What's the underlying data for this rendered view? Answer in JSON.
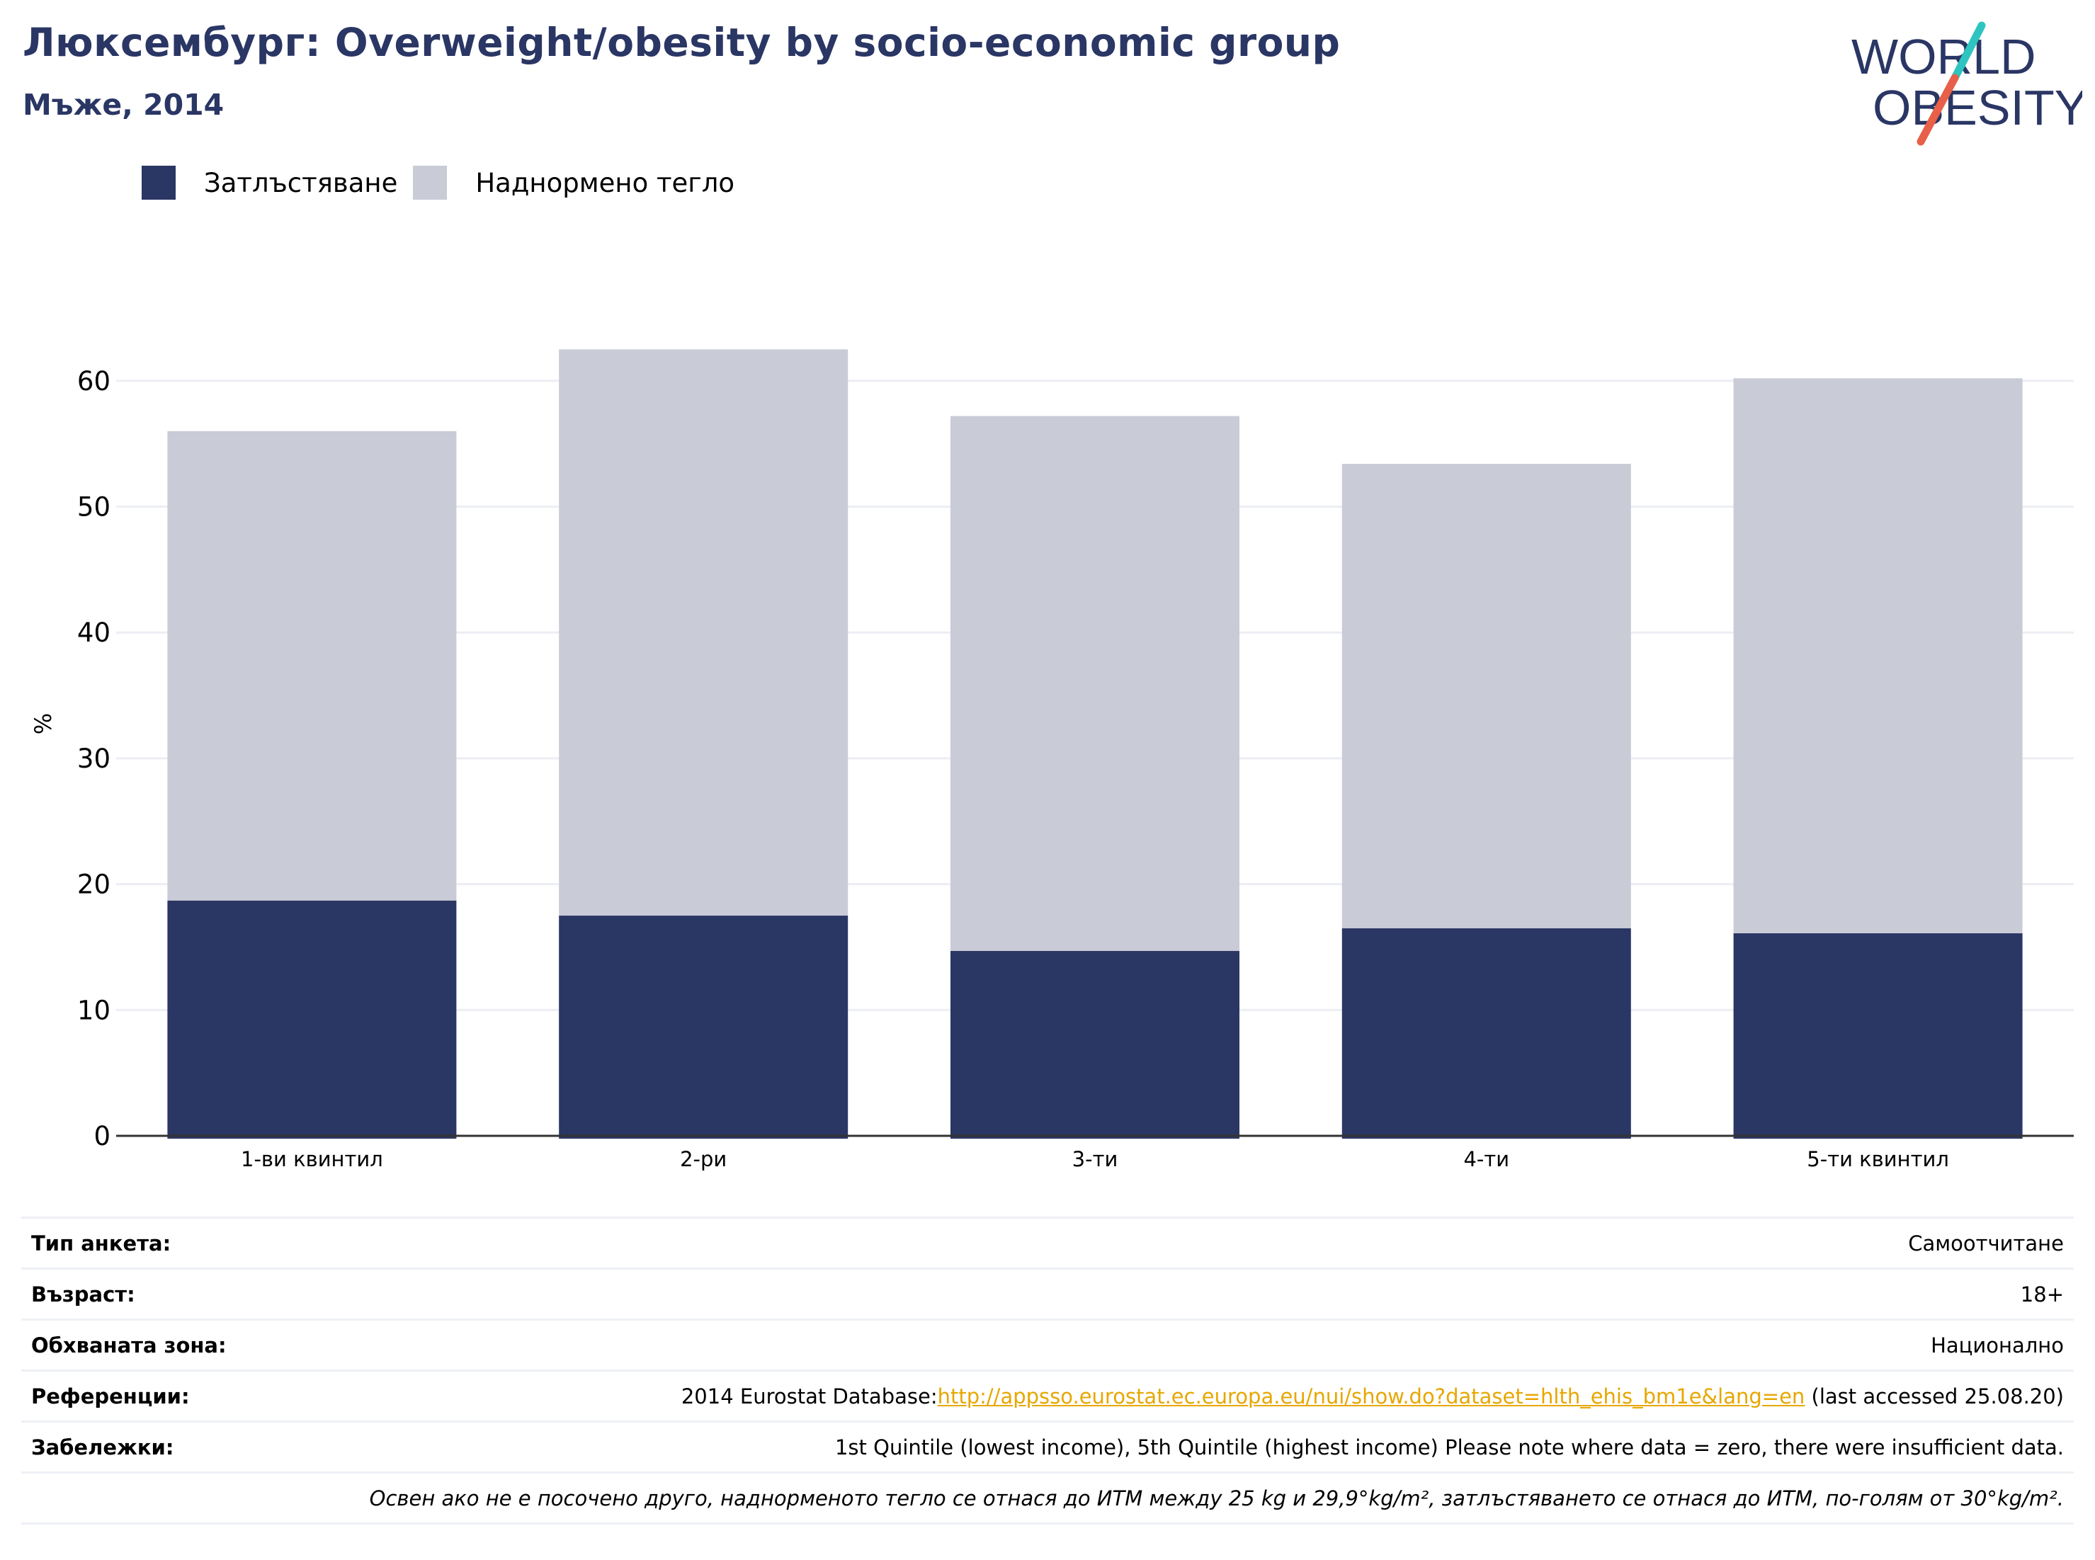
{
  "title": "Люксембург: Overweight/obesity by socio-economic group",
  "subtitle": "Мъже, 2014",
  "logo": {
    "line1": "WORLD",
    "line2": "OBESITY"
  },
  "colors": {
    "obesity": "#2a3664",
    "overweight": "#c9cbd7",
    "grid": "#eceef3",
    "axis": "#333333",
    "link": "#e6a700",
    "logo_teal": "#2ec4c0",
    "logo_red": "#e8604a"
  },
  "chart_data": {
    "type": "bar",
    "stacked": true,
    "categories": [
      "1-ви квинтил",
      "2-ри",
      "3-ти",
      "4-ти",
      "5-ти квинтил"
    ],
    "series": [
      {
        "name": "Затлъстяване",
        "values": [
          18.7,
          17.5,
          14.7,
          16.5,
          16.1
        ]
      },
      {
        "name": "Наднормено тегло",
        "values": [
          37.3,
          45.0,
          42.5,
          36.9,
          44.1
        ]
      }
    ],
    "ylabel": "%",
    "yticks": [
      0,
      10,
      20,
      30,
      40,
      50,
      60
    ],
    "ylim": [
      0,
      65
    ],
    "grid": true,
    "legend_position": "top-left"
  },
  "meta": {
    "survey_type": {
      "label": "Тип анкета:",
      "value": "Самоотчитане"
    },
    "age": {
      "label": "Възраст:",
      "value": "18+"
    },
    "area": {
      "label": "Обхваната зона:",
      "value": "Национално"
    },
    "references": {
      "label": "Референции:",
      "prefix": "2014 Eurostat Database:",
      "link": "http://appsso.eurostat.ec.europa.eu/nui/show.do?dataset=hlth_ehis_bm1e&lang=en",
      "suffix": " (last accessed 25.08.20)"
    },
    "notes": {
      "label": "Забележки:",
      "value": "1st Quintile (lowest income), 5th Quintile (highest income) Please note where data = zero, there were insufficient data."
    },
    "footnote": "Освен ако не е посочено друго, наднорменото тегло се отнася до ИТМ между 25 kg и 29,9°kg/m², затлъстяването се отнася до ИТМ, по-голям от 30°kg/m²."
  }
}
